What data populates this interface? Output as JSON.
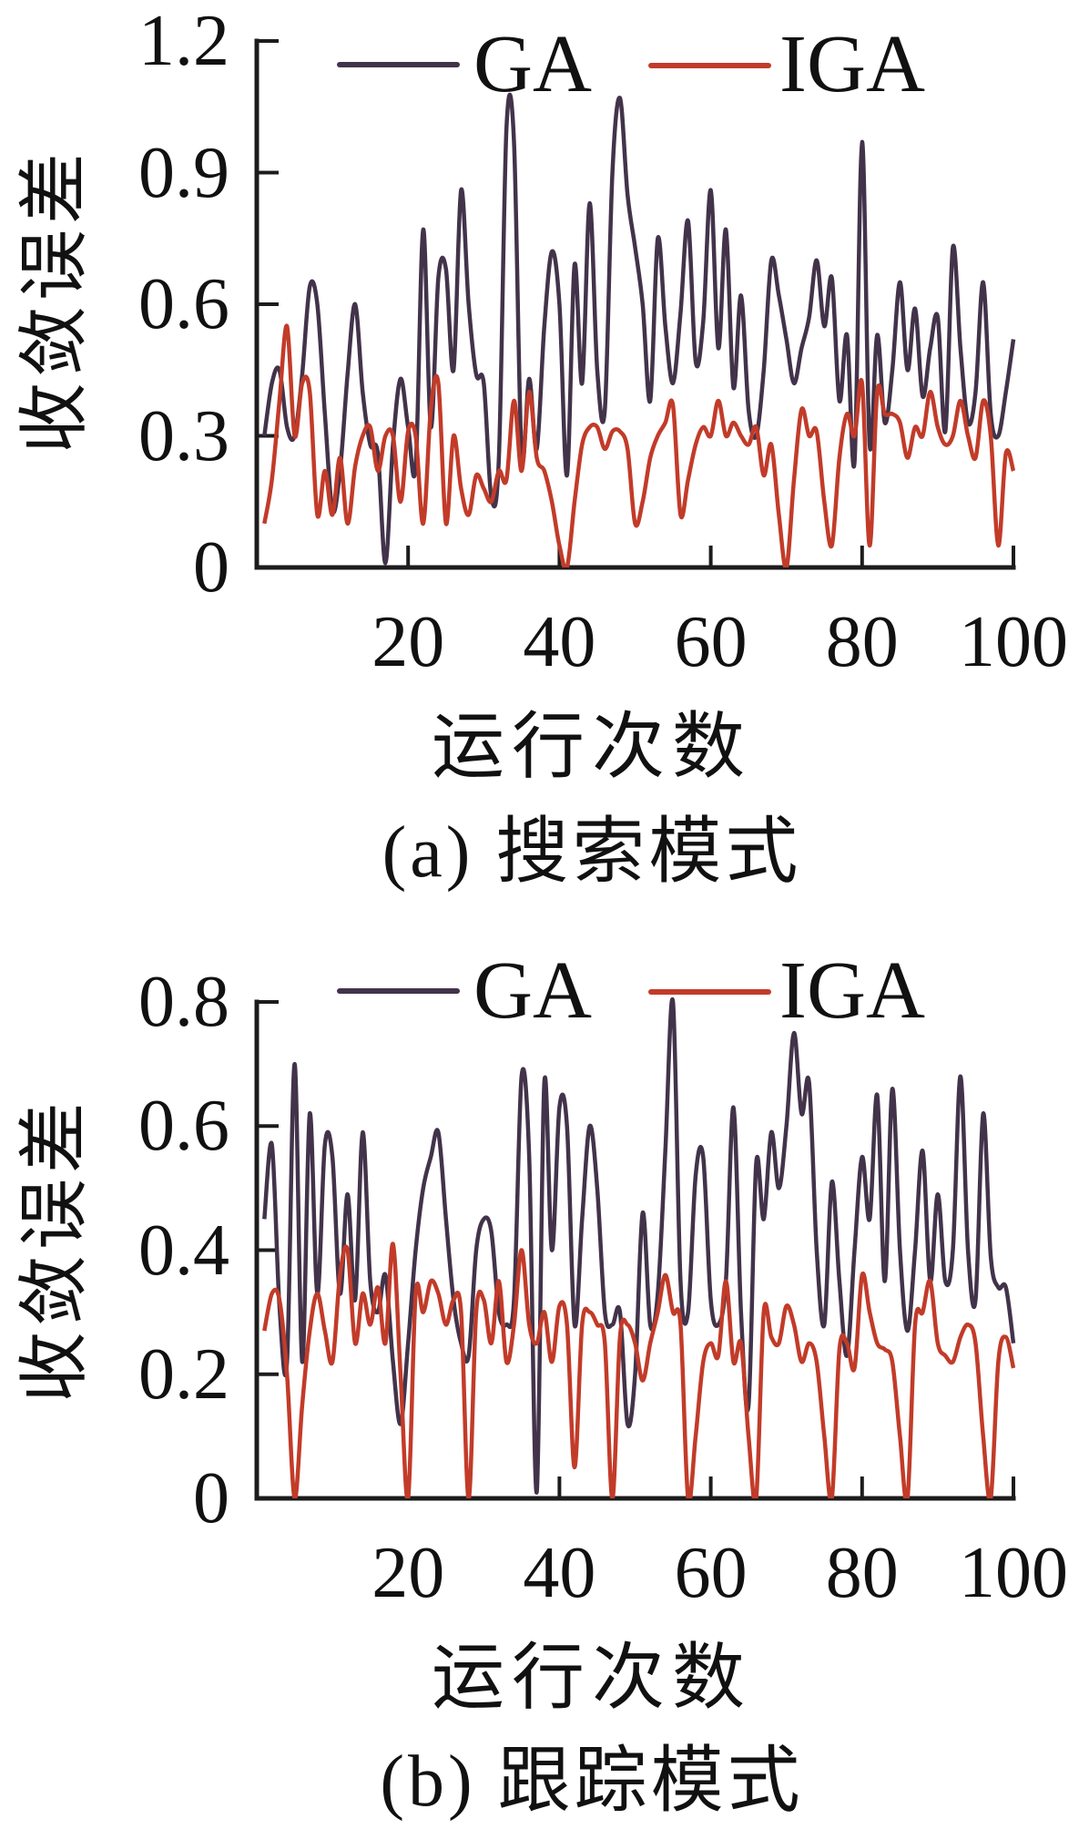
{
  "figure": {
    "background": "#ffffff",
    "axis_color": "#1c1c1c",
    "text_color": "#111111"
  },
  "chart_data": [
    {
      "type": "line",
      "title": "(a) 搜索模式",
      "xlabel": "运行次数",
      "ylabel": "收敛误差",
      "xlim": [
        0,
        100
      ],
      "ylim": [
        0,
        1.2
      ],
      "xticks": [
        20,
        40,
        60,
        80,
        100
      ],
      "xtick_labels": [
        "20",
        "40",
        "60",
        "80",
        "100"
      ],
      "yticks": [
        0,
        0.3,
        0.6,
        0.9,
        1.2
      ],
      "ytick_labels": [
        "0",
        "0.3",
        "0.6",
        "0.9",
        "1.2"
      ],
      "grid": false,
      "legend_position": "top-inside",
      "x_start": 1,
      "series": [
        {
          "name": "GA",
          "color": "#42334a",
          "values": [
            0.3,
            0.42,
            0.45,
            0.32,
            0.3,
            0.44,
            0.64,
            0.6,
            0.35,
            0.13,
            0.22,
            0.44,
            0.6,
            0.4,
            0.28,
            0.26,
            0.01,
            0.28,
            0.43,
            0.32,
            0.23,
            0.77,
            0.32,
            0.66,
            0.68,
            0.45,
            0.86,
            0.6,
            0.44,
            0.42,
            0.16,
            0.25,
            1.0,
            0.97,
            0.26,
            0.43,
            0.27,
            0.55,
            0.72,
            0.6,
            0.21,
            0.69,
            0.42,
            0.83,
            0.45,
            0.36,
            0.9,
            1.07,
            0.85,
            0.73,
            0.6,
            0.38,
            0.75,
            0.55,
            0.42,
            0.58,
            0.79,
            0.47,
            0.56,
            0.86,
            0.5,
            0.77,
            0.41,
            0.62,
            0.36,
            0.3,
            0.45,
            0.7,
            0.62,
            0.52,
            0.42,
            0.5,
            0.57,
            0.7,
            0.55,
            0.66,
            0.38,
            0.53,
            0.24,
            0.97,
            0.28,
            0.53,
            0.33,
            0.45,
            0.65,
            0.45,
            0.59,
            0.39,
            0.5,
            0.57,
            0.31,
            0.73,
            0.5,
            0.33,
            0.4,
            0.65,
            0.35,
            0.3,
            0.4,
            0.52
          ]
        },
        {
          "name": "IGA",
          "color": "#c23b29",
          "values": [
            0.1,
            0.2,
            0.38,
            0.55,
            0.3,
            0.42,
            0.4,
            0.12,
            0.22,
            0.12,
            0.25,
            0.1,
            0.23,
            0.3,
            0.32,
            0.22,
            0.3,
            0.3,
            0.15,
            0.31,
            0.3,
            0.1,
            0.36,
            0.42,
            0.1,
            0.3,
            0.18,
            0.12,
            0.21,
            0.18,
            0.15,
            0.22,
            0.2,
            0.38,
            0.22,
            0.4,
            0.25,
            0.22,
            0.15,
            0.05,
            0.0,
            0.15,
            0.28,
            0.32,
            0.32,
            0.27,
            0.31,
            0.31,
            0.27,
            0.1,
            0.15,
            0.25,
            0.3,
            0.33,
            0.37,
            0.12,
            0.2,
            0.28,
            0.32,
            0.3,
            0.38,
            0.3,
            0.33,
            0.3,
            0.28,
            0.32,
            0.21,
            0.28,
            0.12,
            0.0,
            0.2,
            0.36,
            0.3,
            0.31,
            0.15,
            0.05,
            0.25,
            0.35,
            0.3,
            0.42,
            0.05,
            0.4,
            0.35,
            0.35,
            0.33,
            0.25,
            0.32,
            0.3,
            0.4,
            0.32,
            0.28,
            0.3,
            0.38,
            0.3,
            0.25,
            0.38,
            0.3,
            0.05,
            0.26,
            0.22
          ]
        }
      ]
    },
    {
      "type": "line",
      "title": "(b) 跟踪模式",
      "xlabel": "运行次数",
      "ylabel": "收敛误差",
      "xlim": [
        0,
        100
      ],
      "ylim": [
        0,
        0.8
      ],
      "xticks": [
        20,
        40,
        60,
        80,
        100
      ],
      "xtick_labels": [
        "20",
        "40",
        "60",
        "80",
        "100"
      ],
      "yticks": [
        0,
        0.2,
        0.4,
        0.6,
        0.8
      ],
      "ytick_labels": [
        "0",
        "0.2",
        "0.4",
        "0.6",
        "0.8"
      ],
      "grid": false,
      "legend_position": "top-inside",
      "x_start": 1,
      "series": [
        {
          "name": "GA",
          "color": "#42334a",
          "values": [
            0.45,
            0.57,
            0.31,
            0.22,
            0.7,
            0.22,
            0.62,
            0.33,
            0.57,
            0.55,
            0.33,
            0.49,
            0.32,
            0.59,
            0.35,
            0.3,
            0.36,
            0.22,
            0.12,
            0.25,
            0.4,
            0.5,
            0.55,
            0.59,
            0.45,
            0.32,
            0.25,
            0.23,
            0.4,
            0.45,
            0.43,
            0.3,
            0.28,
            0.32,
            0.68,
            0.55,
            0.01,
            0.67,
            0.4,
            0.63,
            0.6,
            0.28,
            0.45,
            0.6,
            0.5,
            0.3,
            0.28,
            0.3,
            0.12,
            0.2,
            0.46,
            0.28,
            0.33,
            0.56,
            0.8,
            0.35,
            0.3,
            0.52,
            0.55,
            0.32,
            0.28,
            0.35,
            0.63,
            0.3,
            0.15,
            0.54,
            0.45,
            0.59,
            0.5,
            0.6,
            0.75,
            0.62,
            0.67,
            0.4,
            0.28,
            0.51,
            0.35,
            0.23,
            0.4,
            0.55,
            0.45,
            0.65,
            0.35,
            0.66,
            0.4,
            0.27,
            0.4,
            0.56,
            0.35,
            0.49,
            0.35,
            0.4,
            0.68,
            0.4,
            0.32,
            0.62,
            0.39,
            0.34,
            0.34,
            0.25
          ]
        },
        {
          "name": "IGA",
          "color": "#c23b29",
          "values": [
            0.27,
            0.33,
            0.32,
            0.2,
            0.0,
            0.15,
            0.27,
            0.33,
            0.27,
            0.22,
            0.36,
            0.4,
            0.25,
            0.33,
            0.28,
            0.34,
            0.25,
            0.41,
            0.2,
            0.0,
            0.33,
            0.3,
            0.35,
            0.33,
            0.28,
            0.32,
            0.3,
            0.0,
            0.3,
            0.32,
            0.25,
            0.35,
            0.22,
            0.28,
            0.4,
            0.28,
            0.25,
            0.3,
            0.22,
            0.31,
            0.28,
            0.05,
            0.28,
            0.3,
            0.28,
            0.25,
            0.0,
            0.26,
            0.28,
            0.25,
            0.19,
            0.25,
            0.3,
            0.36,
            0.3,
            0.28,
            0.0,
            0.1,
            0.22,
            0.25,
            0.23,
            0.35,
            0.22,
            0.25,
            0.1,
            0.0,
            0.3,
            0.26,
            0.25,
            0.31,
            0.28,
            0.22,
            0.25,
            0.22,
            0.1,
            0.0,
            0.24,
            0.25,
            0.21,
            0.36,
            0.3,
            0.25,
            0.24,
            0.22,
            0.1,
            0.0,
            0.28,
            0.3,
            0.35,
            0.25,
            0.23,
            0.22,
            0.26,
            0.28,
            0.25,
            0.1,
            0.0,
            0.22,
            0.26,
            0.21
          ]
        }
      ]
    }
  ]
}
